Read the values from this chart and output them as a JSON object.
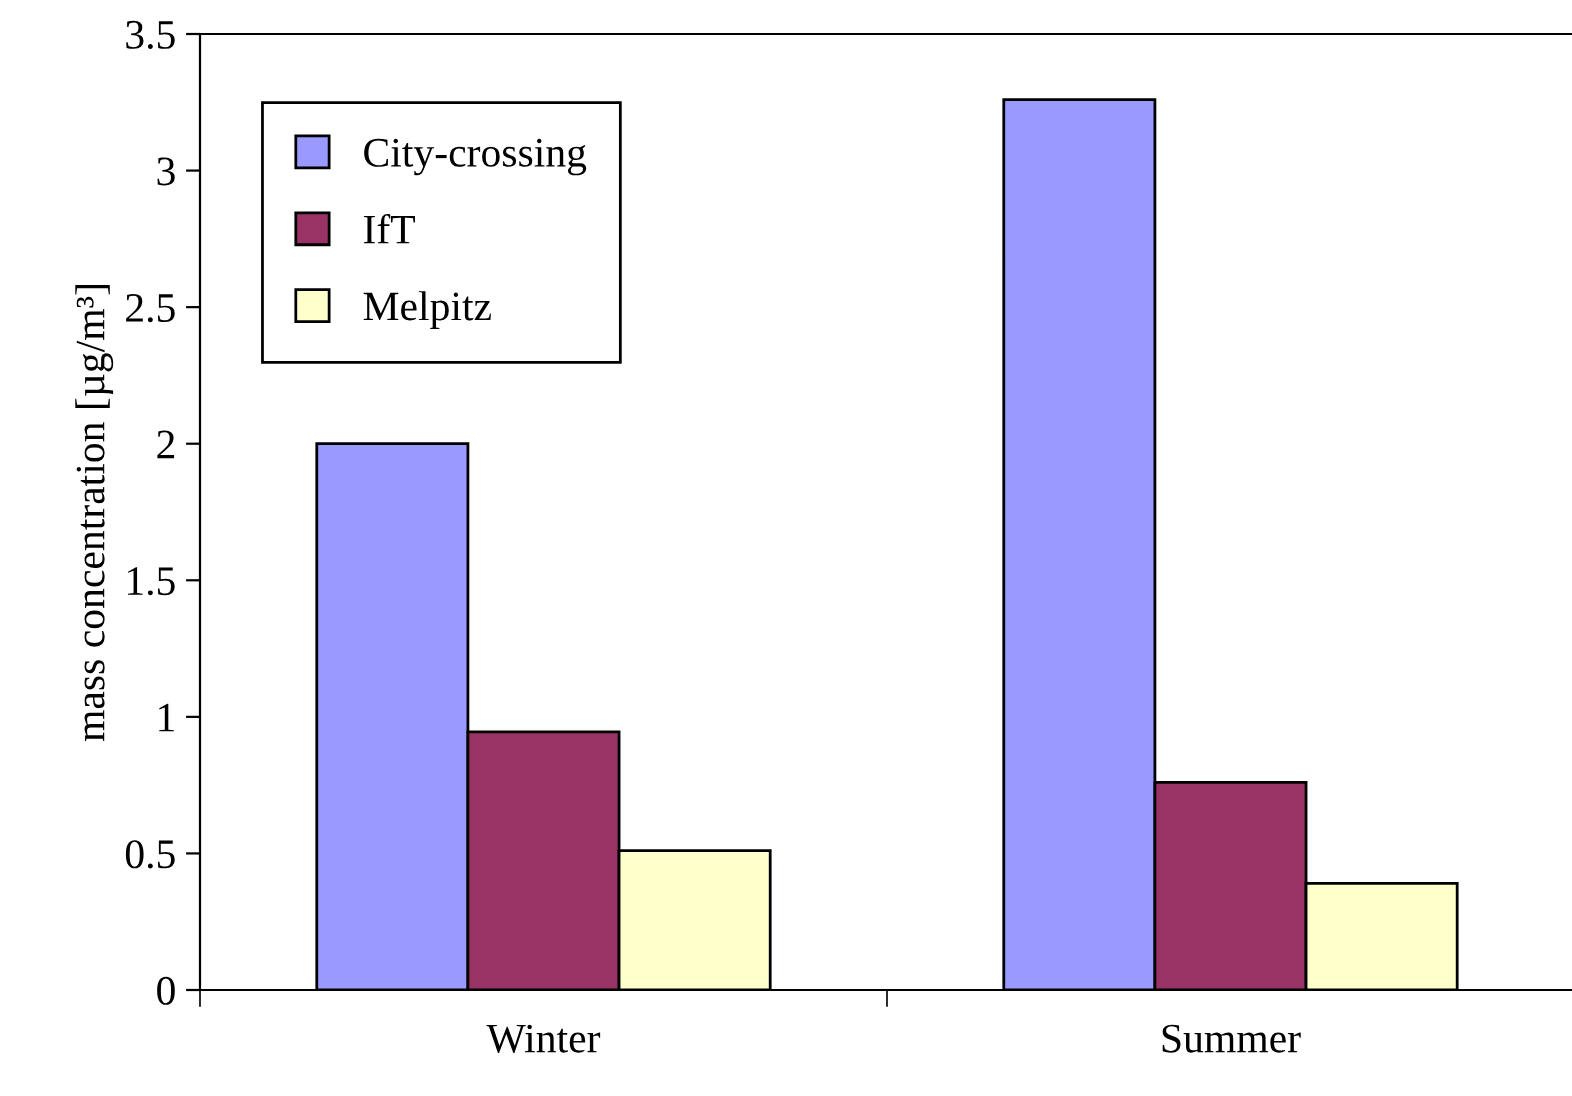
{
  "chart_data": {
    "type": "bar",
    "ylabel": "mass concentration [µg/m³]",
    "categories": [
      "Winter",
      "Summer"
    ],
    "series": [
      {
        "name": "City-crossing",
        "color": "#9999ff",
        "values": [
          2.0,
          3.26
        ]
      },
      {
        "name": "IfT",
        "color": "#993366",
        "values": [
          0.945,
          0.76
        ]
      },
      {
        "name": "Melpitz",
        "color": "#ffffcc",
        "values": [
          0.51,
          0.39
        ]
      }
    ],
    "ylim": [
      0,
      3.5
    ],
    "yticks": [
      0,
      0.5,
      1,
      1.5,
      2,
      2.5,
      3,
      3.5
    ],
    "grid": false,
    "legend": "top left"
  }
}
